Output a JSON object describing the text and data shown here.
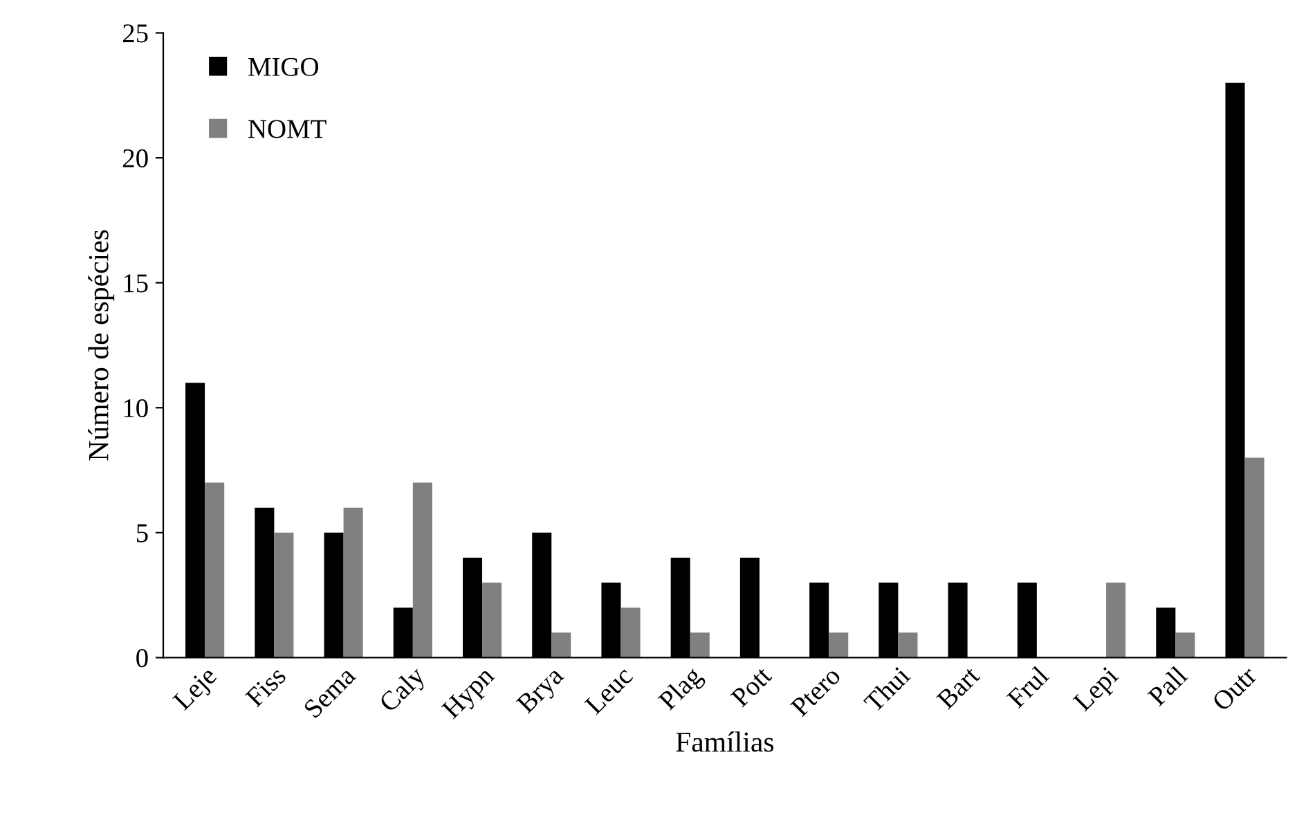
{
  "chart_data": {
    "type": "bar",
    "xlabel": "Famílias",
    "ylabel": "Número de espécies",
    "categories": [
      "Leje",
      "Fiss",
      "Sema",
      "Caly",
      "Hypn",
      "Brya",
      "Leuc",
      "Plag",
      "Pott",
      "Ptero",
      "Thui",
      "Bart",
      "Frul",
      "Lepi",
      "Pall",
      "Outr"
    ],
    "series": [
      {
        "name": "MIGO",
        "color": "#000000",
        "values": [
          11,
          6,
          5,
          2,
          4,
          5,
          3,
          4,
          4,
          3,
          3,
          3,
          3,
          0,
          2,
          23
        ]
      },
      {
        "name": "NOMT",
        "color": "#808080",
        "values": [
          7,
          5,
          6,
          7,
          3,
          1,
          2,
          1,
          0,
          1,
          1,
          0,
          0,
          3,
          1,
          8
        ]
      }
    ],
    "ylim": [
      0,
      25
    ],
    "yticks": [
      0,
      5,
      10,
      15,
      20,
      25
    ],
    "grid": false,
    "legend": "top left"
  }
}
